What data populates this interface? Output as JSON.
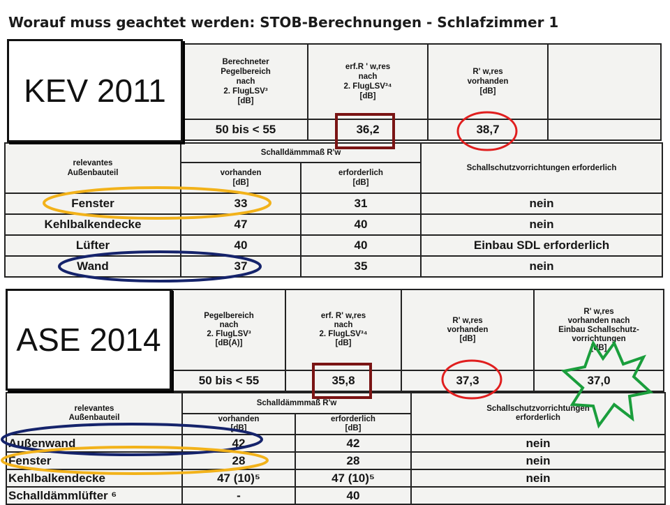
{
  "title": "Worauf muss geachtet werden: STOB-Berechnungen   -   Schlafzimmer 1",
  "kev": {
    "label": "KEV 2011",
    "top_headers": [
      "Berechneter\nPegelbereich\nnach\n2. FlugLSV³\n[dB]",
      "erf.R ' w,res\nnach\n2. FlugLSV³⁴\n[dB]",
      "R' w,res\nvorhanden\n[dB]",
      ""
    ],
    "top_values": [
      "50 bis < 55",
      "36,2",
      "38,7",
      ""
    ],
    "group_label": "relevantes\nAußenbauteil",
    "group_header": "Schalldämmmaß R'w",
    "sub_headers": [
      "vorhanden\n[dB]",
      "erforderlich\n[dB]"
    ],
    "protection_header": "Schallschutzvorrichtungen erforderlich",
    "rows": [
      {
        "part": "Fenster",
        "present": "33",
        "required": "31",
        "protection": "nein"
      },
      {
        "part": "Kehlbalkendecke",
        "present": "47",
        "required": "40",
        "protection": "nein"
      },
      {
        "part": "Lüfter",
        "present": "40",
        "required": "40",
        "protection": "Einbau SDL erforderlich"
      },
      {
        "part": "Wand",
        "present": "37",
        "required": "35",
        "protection": "nein"
      }
    ]
  },
  "ase": {
    "label": "ASE 2014",
    "top_headers": [
      "Pegelbereich\nnach\n2. FlugLSV³\n[dB(A)]",
      "erf. R' w,res\nnach\n2. FlugLSV³⁴\n[dB]",
      "R' w,res\nvorhanden\n[dB]",
      "R' w,res\nvorhanden nach\nEinbau Schallschutz-\nvorrichtungen\n[dB]"
    ],
    "top_values": [
      "50 bis < 55",
      "35,8",
      "37,3",
      "37,0"
    ],
    "group_label": "relevantes\nAußenbauteil",
    "group_header": "Schalldämmmaß R'w",
    "sub_headers": [
      "vorhanden\n[dB]",
      "erforderlich\n[dB]"
    ],
    "protection_header": "Schallschutzvorrichtungen\nerforderlich",
    "rows": [
      {
        "part": "Außenwand",
        "present": "42",
        "required": "42",
        "protection": "nein"
      },
      {
        "part": "Fenster",
        "present": "28",
        "required": "28",
        "protection": "nein"
      },
      {
        "part": "Kehlbalkendecke",
        "present": "47 (10)⁵",
        "required": "47 (10)⁵",
        "protection": "nein"
      },
      {
        "part": "Schalldämmlüfter ⁶",
        "present": "-",
        "required": "40",
        "protection": ""
      }
    ]
  },
  "colors": {
    "red": "#e01e1e",
    "darkred": "#7a1414",
    "gold": "#f2b21a",
    "navy": "#15236b",
    "green": "#1a9e3c"
  }
}
